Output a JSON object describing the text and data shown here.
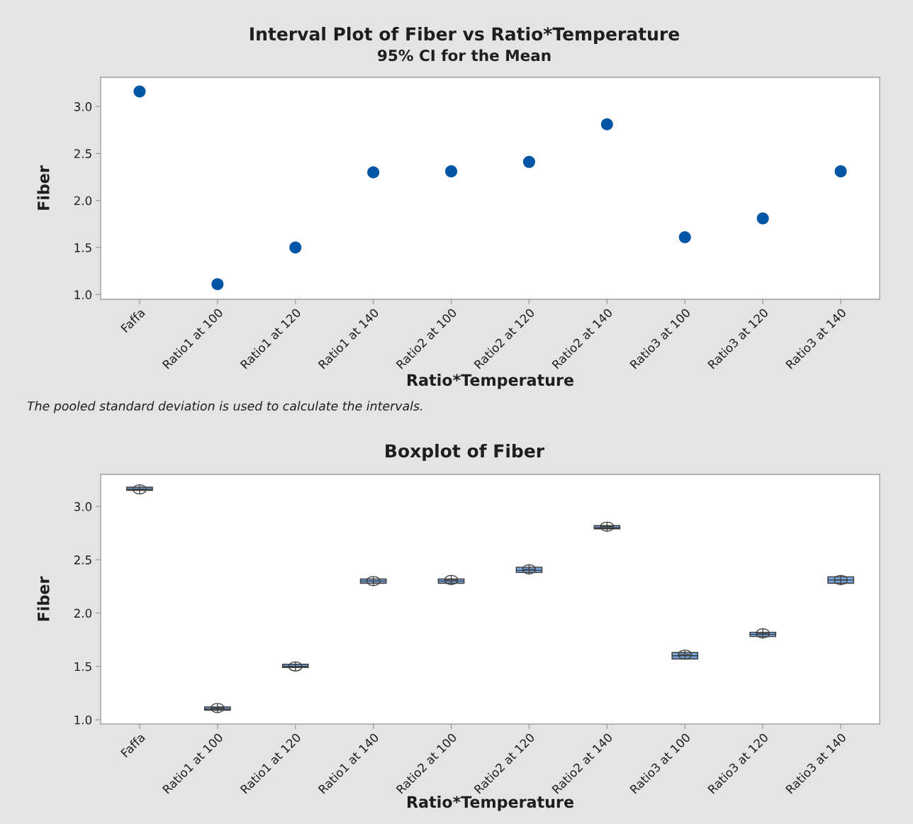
{
  "chart_data": [
    {
      "type": "scatter",
      "title": "Interval Plot of Fiber vs Ratio*Temperature",
      "subtitle": "95% CI for the Mean",
      "xlabel": "Ratio*Temperature",
      "ylabel": "Fiber",
      "categories": [
        "Faffa",
        "Ratio1 at 100",
        "Ratio1 at 120",
        "Ratio1 at 140",
        "Ratio2 at 100",
        "Ratio2 at 120",
        "Ratio2 at 140",
        "Ratio3 at 100",
        "Ratio3 at 120",
        "Ratio3 at 140"
      ],
      "values": [
        3.16,
        1.11,
        1.5,
        2.3,
        2.31,
        2.41,
        2.81,
        1.61,
        1.81,
        2.31
      ],
      "color": "#0055a5",
      "marker": "circle",
      "ylim": [
        0.95,
        3.31
      ],
      "yticks": [
        {
          "value": 1,
          "label": "1.0"
        },
        {
          "value": 1.5,
          "label": "1.5"
        },
        {
          "value": 2,
          "label": "2.0"
        },
        {
          "value": 2.5,
          "label": "2.5"
        },
        {
          "value": 3,
          "label": "3.0"
        }
      ],
      "annotations": [
        "The pooled standard deviation is used to calculate the intervals."
      ]
    },
    {
      "type": "box",
      "title": "Boxplot of Fiber",
      "xlabel": "Ratio*Temperature",
      "ylabel": "Fiber",
      "categories": [
        "Faffa",
        "Ratio1 at 100",
        "Ratio1 at 120",
        "Ratio1 at 140",
        "Ratio2 at 100",
        "Ratio2 at 120",
        "Ratio2 at 140",
        "Ratio3 at 100",
        "Ratio3 at 120",
        "Ratio3 at 140"
      ],
      "boxes": [
        {
          "low": 3.15,
          "q1": 3.15,
          "median": 3.16,
          "q3": 3.18,
          "high": 3.18,
          "mean": 3.16
        },
        {
          "low": 1.09,
          "q1": 1.09,
          "median": 1.1,
          "q3": 1.12,
          "high": 1.12,
          "mean": 1.11
        },
        {
          "low": 1.49,
          "q1": 1.49,
          "median": 1.5,
          "q3": 1.52,
          "high": 1.52,
          "mean": 1.5
        },
        {
          "low": 2.28,
          "q1": 2.28,
          "median": 2.3,
          "q3": 2.32,
          "high": 2.32,
          "mean": 2.3
        },
        {
          "low": 2.28,
          "q1": 2.28,
          "median": 2.3,
          "q3": 2.32,
          "high": 2.32,
          "mean": 2.31
        },
        {
          "low": 2.38,
          "q1": 2.38,
          "median": 2.4,
          "q3": 2.43,
          "high": 2.43,
          "mean": 2.41
        },
        {
          "low": 2.79,
          "q1": 2.79,
          "median": 2.8,
          "q3": 2.82,
          "high": 2.82,
          "mean": 2.81
        },
        {
          "low": 1.57,
          "q1": 1.57,
          "median": 1.6,
          "q3": 1.63,
          "high": 1.63,
          "mean": 1.61
        },
        {
          "low": 1.78,
          "q1": 1.78,
          "median": 1.8,
          "q3": 1.82,
          "high": 1.82,
          "mean": 1.81
        },
        {
          "low": 2.28,
          "q1": 2.28,
          "median": 2.31,
          "q3": 2.34,
          "high": 2.34,
          "mean": 2.31
        }
      ],
      "color": "#78a5dc",
      "ylim": [
        0.96,
        3.3
      ],
      "yticks": [
        {
          "value": 1,
          "label": "1.0"
        },
        {
          "value": 1.5,
          "label": "1.5"
        },
        {
          "value": 2,
          "label": "2.0"
        },
        {
          "value": 2.5,
          "label": "2.5"
        },
        {
          "value": 3,
          "label": "3.0"
        }
      ]
    }
  ]
}
